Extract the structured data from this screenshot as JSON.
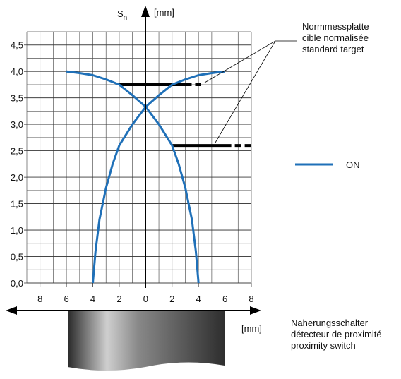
{
  "chart_data": {
    "type": "line",
    "y_label": "S",
    "y_label_sub": "n",
    "y_unit": "[mm]",
    "x_unit": "[mm]",
    "xlim": [
      -9,
      8
    ],
    "ylim": [
      0,
      4.75
    ],
    "xticks": [
      {
        "value": -8,
        "label": "8"
      },
      {
        "value": -6,
        "label": "6"
      },
      {
        "value": -4,
        "label": "4"
      },
      {
        "value": -2,
        "label": "2"
      },
      0,
      2,
      4,
      6,
      8
    ],
    "yticks": [
      {
        "value": 0,
        "label": "0,0"
      },
      {
        "value": 0.5,
        "label": "0,5"
      },
      {
        "value": 1,
        "label": "1,0"
      },
      {
        "value": 1.5,
        "label": "1,5"
      },
      {
        "value": 2,
        "label": "2,0"
      },
      {
        "value": 2.5,
        "label": "2,5"
      },
      {
        "value": 3,
        "label": "3,0"
      },
      {
        "value": 3.5,
        "label": "3,5"
      },
      {
        "value": 4,
        "label": "4,0"
      },
      {
        "value": 4.5,
        "label": "4,5"
      }
    ],
    "grid": true,
    "minor_grid": true,
    "series": [
      {
        "name": "ON",
        "color": "#1f70b8",
        "x": [
          -4,
          -3.8,
          -3.5,
          -3,
          -2.5,
          -2,
          -1,
          0,
          1,
          2,
          3,
          4,
          5,
          6
        ],
        "values": [
          0,
          0.6,
          1.2,
          1.8,
          2.25,
          2.6,
          3.0,
          3.33,
          3.55,
          3.75,
          3.85,
          3.93,
          3.97,
          4.0
        ]
      },
      {
        "color": "#1f70b8",
        "x": [
          -6,
          -5,
          -4,
          -3,
          -2,
          -1,
          0,
          1,
          2,
          2.5,
          3,
          3.5,
          3.8,
          4
        ],
        "values": [
          4.0,
          3.97,
          3.93,
          3.85,
          3.75,
          3.55,
          3.33,
          3.0,
          2.6,
          2.25,
          1.8,
          1.2,
          0.6,
          0
        ]
      }
    ],
    "targets": [
      {
        "y": 3.75,
        "x_start": -2,
        "x_solid_end": 3,
        "x_end": 4.2
      },
      {
        "y": 2.6,
        "x_start": 2,
        "x_solid_end": 6,
        "x_end": 8
      }
    ],
    "target_label": [
      "Normmessplatte",
      "cible normalisée",
      "standard target"
    ],
    "switch_label": [
      "Näherungsschalter",
      "détecteur de proximité",
      "proximity switch"
    ]
  }
}
